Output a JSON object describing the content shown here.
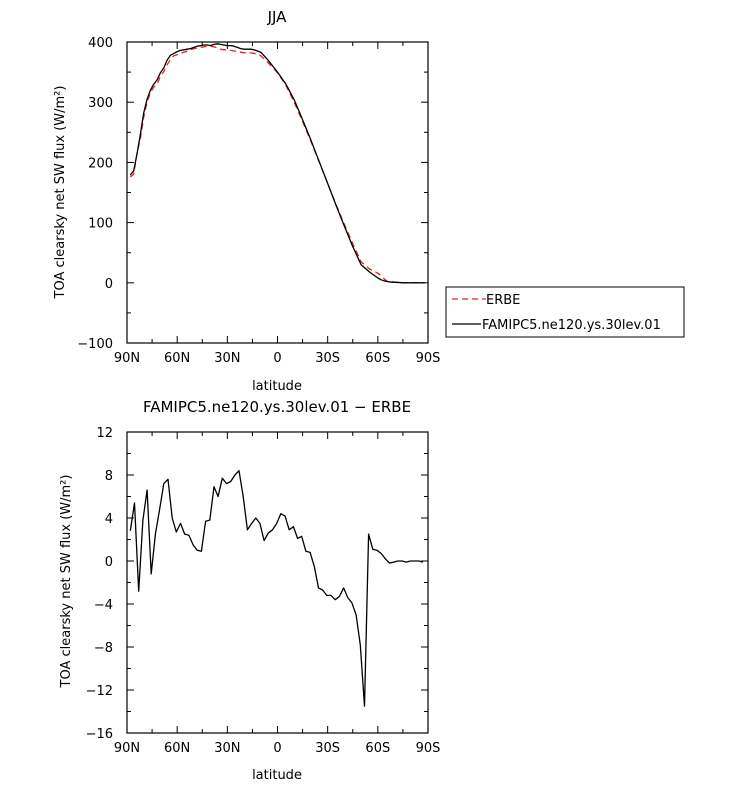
{
  "chart_data": [
    {
      "type": "line",
      "title": "JJA",
      "xlabel": "latitude",
      "ylabel": "TOA clearsky net SW flux (W/m²)",
      "xlim": [
        90,
        -90
      ],
      "ylim": [
        -100,
        400
      ],
      "xticks": [
        90,
        60,
        30,
        0,
        -30,
        -60,
        -90
      ],
      "xtick_labels": [
        "90N",
        "60N",
        "30N",
        "0",
        "30S",
        "60S",
        "90S"
      ],
      "yticks": [
        -100,
        0,
        100,
        200,
        300,
        400
      ],
      "ytick_labels": [
        "−100",
        "0",
        "100",
        "200",
        "300",
        "400"
      ],
      "legend_position": "right",
      "series": [
        {
          "name": "ERBE",
          "color": "#e8201c",
          "style": "dashed",
          "x": [
            88,
            86,
            84,
            82,
            80,
            78,
            76,
            74,
            72,
            70,
            68,
            66,
            64,
            62,
            60,
            58,
            56,
            54,
            52,
            50,
            48,
            46,
            44,
            42,
            40,
            38,
            36,
            34,
            32,
            30,
            28,
            26,
            24,
            22,
            20,
            18,
            16,
            14,
            12,
            10,
            8,
            6,
            4,
            2,
            0,
            -5,
            -10,
            -15,
            -20,
            -25,
            -30,
            -35,
            -40,
            -45,
            -50,
            -55,
            -60,
            -62,
            -64,
            -66,
            -68,
            -70,
            -75,
            -80,
            -85,
            -88
          ],
          "y": [
            176,
            180,
            215,
            240,
            275,
            300,
            316,
            325,
            330,
            343,
            351,
            362,
            371,
            377,
            379,
            381,
            383,
            385,
            387,
            389,
            390,
            391,
            392,
            393,
            393,
            392,
            390,
            388,
            387,
            387,
            386,
            385,
            384,
            383,
            382,
            382,
            382,
            381,
            380,
            377,
            372,
            367,
            361,
            355,
            349,
            328,
            300,
            268,
            235,
            200,
            165,
            130,
            97,
            65,
            35,
            23,
            16,
            12,
            6,
            2,
            2,
            1,
            0,
            0,
            0,
            0
          ]
        },
        {
          "name": "FAMIPC5.ne120.ys.30lev.01",
          "color": "#000000",
          "style": "solid",
          "x": [
            88,
            86,
            84,
            82,
            80,
            78,
            76,
            74,
            72,
            70,
            68,
            66,
            64,
            62,
            60,
            58,
            56,
            54,
            52,
            50,
            48,
            46,
            44,
            42,
            40,
            38,
            36,
            34,
            32,
            30,
            28,
            26,
            24,
            22,
            20,
            18,
            16,
            14,
            12,
            10,
            8,
            6,
            4,
            2,
            0,
            -5,
            -10,
            -15,
            -20,
            -25,
            -30,
            -35,
            -40,
            -45,
            -50,
            -55,
            -60,
            -62,
            -64,
            -66,
            -68,
            -70,
            -75,
            -80,
            -85,
            -88
          ],
          "y": [
            179,
            186,
            214,
            247,
            282,
            305,
            320,
            330,
            337,
            349,
            357,
            370,
            378,
            381,
            384,
            386,
            387,
            388,
            389,
            391,
            393,
            394,
            395,
            395,
            394,
            396,
            397,
            396,
            395,
            394,
            394,
            393,
            391,
            389,
            388,
            388,
            388,
            387,
            385,
            383,
            377,
            371,
            364,
            357,
            350,
            330,
            304,
            271,
            237,
            201,
            165,
            129,
            94,
            60,
            30,
            18,
            8,
            5,
            3,
            2,
            1,
            1,
            0,
            0,
            0,
            0
          ]
        }
      ]
    },
    {
      "type": "line",
      "title": "FAMIPC5.ne120.ys.30lev.01 − ERBE",
      "xlabel": "latitude",
      "ylabel": "TOA clearsky net SW flux (W/m²)",
      "xlim": [
        90,
        -90
      ],
      "ylim": [
        -16,
        12
      ],
      "xticks": [
        90,
        60,
        30,
        0,
        -30,
        -60,
        -90
      ],
      "xtick_labels": [
        "90N",
        "60N",
        "30N",
        "0",
        "30S",
        "60S",
        "90S"
      ],
      "yticks": [
        -16,
        -12,
        -8,
        -4,
        0,
        4,
        8,
        12
      ],
      "ytick_labels": [
        "−16",
        "−12",
        "−8",
        "−4",
        "0",
        "4",
        "8",
        "12"
      ],
      "series": [
        {
          "name": "",
          "color": "#000000",
          "style": "solid",
          "x": [
            88,
            85.5,
            83,
            80.5,
            78,
            75.5,
            73,
            70.5,
            68,
            65.5,
            63,
            60.5,
            58,
            55.5,
            53,
            50.5,
            48,
            45.5,
            43,
            40.5,
            38,
            35.5,
            33,
            30.5,
            28,
            25.5,
            23,
            20.5,
            18,
            15.5,
            13,
            10.5,
            8,
            5.5,
            3,
            0.5,
            -2,
            -4.5,
            -7,
            -9.5,
            -12,
            -14.5,
            -17,
            -19.5,
            -22,
            -24.5,
            -27,
            -29.5,
            -32,
            -34.5,
            -37,
            -39.5,
            -42,
            -44.5,
            -47,
            -49.5,
            -52,
            -54.5,
            -57,
            -59.5,
            -62,
            -64.5,
            -67,
            -69.5,
            -72,
            -74.5,
            -77,
            -79.5,
            -82,
            -84.5,
            -87
          ],
          "y": [
            2.8,
            5.4,
            -2.8,
            3.8,
            6.6,
            -1.2,
            2.5,
            4.8,
            7.2,
            7.6,
            4.0,
            2.7,
            3.5,
            2.5,
            2.4,
            1.5,
            1.0,
            0.9,
            3.7,
            3.8,
            6.9,
            6.0,
            7.7,
            7.2,
            7.4,
            8.0,
            8.4,
            6.0,
            2.9,
            3.5,
            4.0,
            3.5,
            1.9,
            2.6,
            2.9,
            3.5,
            4.4,
            4.2,
            2.9,
            3.2,
            2.1,
            2.3,
            0.9,
            0.8,
            -0.5,
            -2.5,
            -2.7,
            -3.2,
            -3.2,
            -3.6,
            -3.3,
            -2.5,
            -3.4,
            -3.9,
            -5.0,
            -7.8,
            -13.5,
            2.5,
            1.1,
            1.0,
            0.7,
            0.2,
            -0.2,
            -0.1,
            0.0,
            0.0,
            -0.1,
            0.0,
            0.0,
            0.0,
            -0.1
          ]
        }
      ]
    }
  ]
}
